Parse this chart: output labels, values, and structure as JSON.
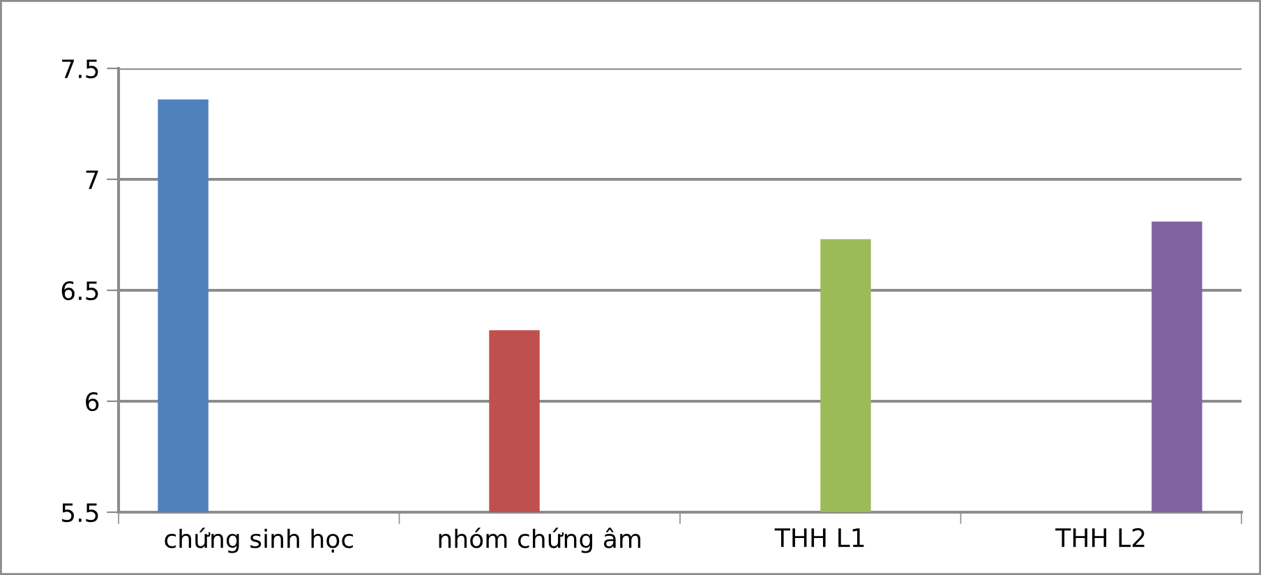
{
  "chart_data": {
    "type": "bar",
    "categories": [
      "chứng sinh học",
      "nhóm chứng âm",
      "THH L1",
      "THH L2"
    ],
    "series": [
      {
        "color": "#4f81bd",
        "values": [
          7.36,
          null,
          null,
          null
        ]
      },
      {
        "color": "#c0504d",
        "values": [
          null,
          6.32,
          null,
          null
        ]
      },
      {
        "color": "#9bbb59",
        "values": [
          null,
          null,
          6.73,
          null
        ]
      },
      {
        "color": "#8064a2",
        "values": [
          null,
          null,
          null,
          6.81
        ]
      }
    ],
    "ylim": [
      5.5,
      7.5
    ],
    "yticks": [
      5.5,
      6,
      6.5,
      7,
      7.5
    ],
    "grid": "y"
  }
}
